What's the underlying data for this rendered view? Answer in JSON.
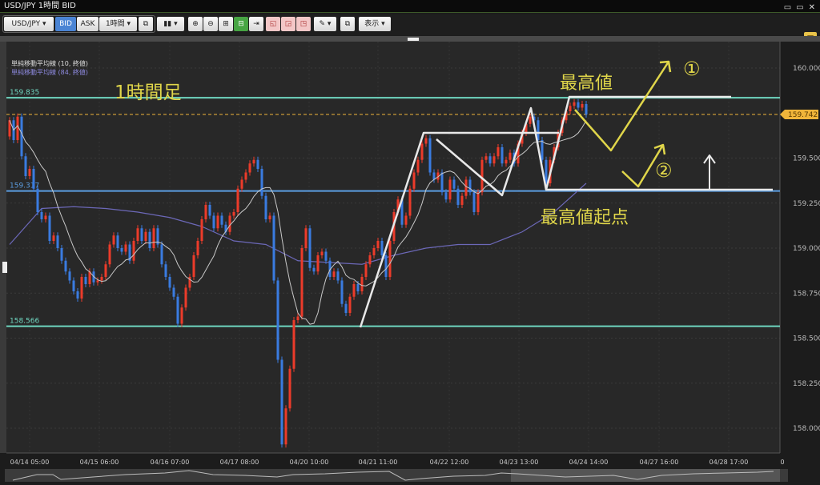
{
  "window": {
    "title": "USD/JPY 1時間 BID",
    "buttons": [
      "▭",
      "▭",
      "✕"
    ]
  },
  "toolbar": {
    "symbol": "USD/JPY ▾",
    "bid": "BID",
    "ask": "ASK",
    "timeframe": "1時間 ▾",
    "link_icon": "⧉",
    "chart_type": "▮▮ ▾",
    "zoom_in": "⊕",
    "zoom_out": "⊖",
    "fit": "⊞",
    "fit_active": "⊟",
    "shift": "⇥",
    "draw1": "◱",
    "draw2": "◲",
    "draw3": "◳",
    "pen": "✎ ▾",
    "snapshot": "⧉",
    "display": "表示 ▾",
    "layout": "⊞"
  },
  "colors": {
    "up": "#ec3b2a",
    "down": "#3a7be0",
    "sma10": "#c8c8c8",
    "sma84": "#6c68b8",
    "teal_line": "#6fd6c0",
    "blue_line": "#5b9de0",
    "current": "#f0b53a",
    "annotation": "#e0d64a"
  },
  "legend": {
    "sma10": "単純移動平均線 (10, 終値)",
    "sma84": "単純移動平均線 (84, 終値)"
  },
  "annotations": {
    "timeframe_label": "1時間足",
    "high": "最高値",
    "high_origin": "最高値起点",
    "scenario1": "①",
    "scenario2": "②"
  },
  "chart_data": {
    "type": "candlestick",
    "title": "USD/JPY 1時間 BID",
    "ylim": [
      157.85,
      160.15
    ],
    "y_ticks": [
      "160.000",
      "159.500",
      "159.250",
      "159.000",
      "158.750",
      "158.500",
      "158.250",
      "158.000"
    ],
    "x_ticks": [
      "04/14 05:00",
      "04/15 06:00",
      "04/16 07:00",
      "04/17 08:00",
      "04/20 10:00",
      "04/21 11:00",
      "04/22 12:00",
      "04/23 13:00",
      "04/24 14:00",
      "04/27 16:00",
      "04/28 17:00",
      "0"
    ],
    "grid": true,
    "current_price": "159.742",
    "horizontal_lines": [
      {
        "label": "159.835",
        "value": 159.835,
        "color": "#6fd6c0"
      },
      {
        "label": "159.317",
        "value": 159.317,
        "color": "#5b9de0"
      },
      {
        "label": "158.566",
        "value": 158.566,
        "color": "#6fd6c0"
      }
    ],
    "first_open": 159.62,
    "closes": [
      159.71,
      159.6,
      159.73,
      159.51,
      159.4,
      159.44,
      159.33,
      159.2,
      159.16,
      159.18,
      159.04,
      159.07,
      159.0,
      158.93,
      158.87,
      158.82,
      158.76,
      158.72,
      158.84,
      158.8,
      158.87,
      158.81,
      158.82,
      158.84,
      158.91,
      159.02,
      159.07,
      159.0,
      158.98,
      159.02,
      158.93,
      159.04,
      159.11,
      159.04,
      159.09,
      159.0,
      159.11,
      159.02,
      158.91,
      158.84,
      158.78,
      158.73,
      158.58,
      158.67,
      158.78,
      158.84,
      158.96,
      159.04,
      159.16,
      159.24,
      159.18,
      159.11,
      159.18,
      159.13,
      159.09,
      159.18,
      159.2,
      159.33,
      159.38,
      159.42,
      159.47,
      159.49,
      159.44,
      159.29,
      159.16,
      159.18,
      158.82,
      158.38,
      157.91,
      158.11,
      158.33,
      158.6,
      158.62,
      159.0,
      159.11,
      158.89,
      158.87,
      158.96,
      158.98,
      158.93,
      158.84,
      158.87,
      158.82,
      158.69,
      158.64,
      158.73,
      158.8,
      158.76,
      158.84,
      158.91,
      158.96,
      159.0,
      159.04,
      158.96,
      158.84,
      159.04,
      159.2,
      159.27,
      159.13,
      159.18,
      159.33,
      159.42,
      159.49,
      159.58,
      159.61,
      159.42,
      159.38,
      159.42,
      159.31,
      159.27,
      159.38,
      159.33,
      159.24,
      159.29,
      159.38,
      159.31,
      159.2,
      159.31,
      159.49,
      159.51,
      159.47,
      159.51,
      159.56,
      159.47,
      159.49,
      159.53,
      159.47,
      159.58,
      159.64,
      159.69,
      159.73,
      159.71,
      159.6,
      159.49,
      159.36,
      159.49,
      159.56,
      159.64,
      159.71,
      159.76,
      159.79,
      159.81,
      159.78,
      159.8,
      159.742
    ],
    "sma84_sampled_every_8": [
      159.02,
      159.22,
      159.23,
      159.22,
      159.2,
      159.17,
      159.12,
      159.04,
      159.02,
      158.93,
      158.92,
      158.91,
      158.96,
      159.0,
      159.02,
      159.02,
      159.09,
      159.2,
      159.36
    ]
  }
}
